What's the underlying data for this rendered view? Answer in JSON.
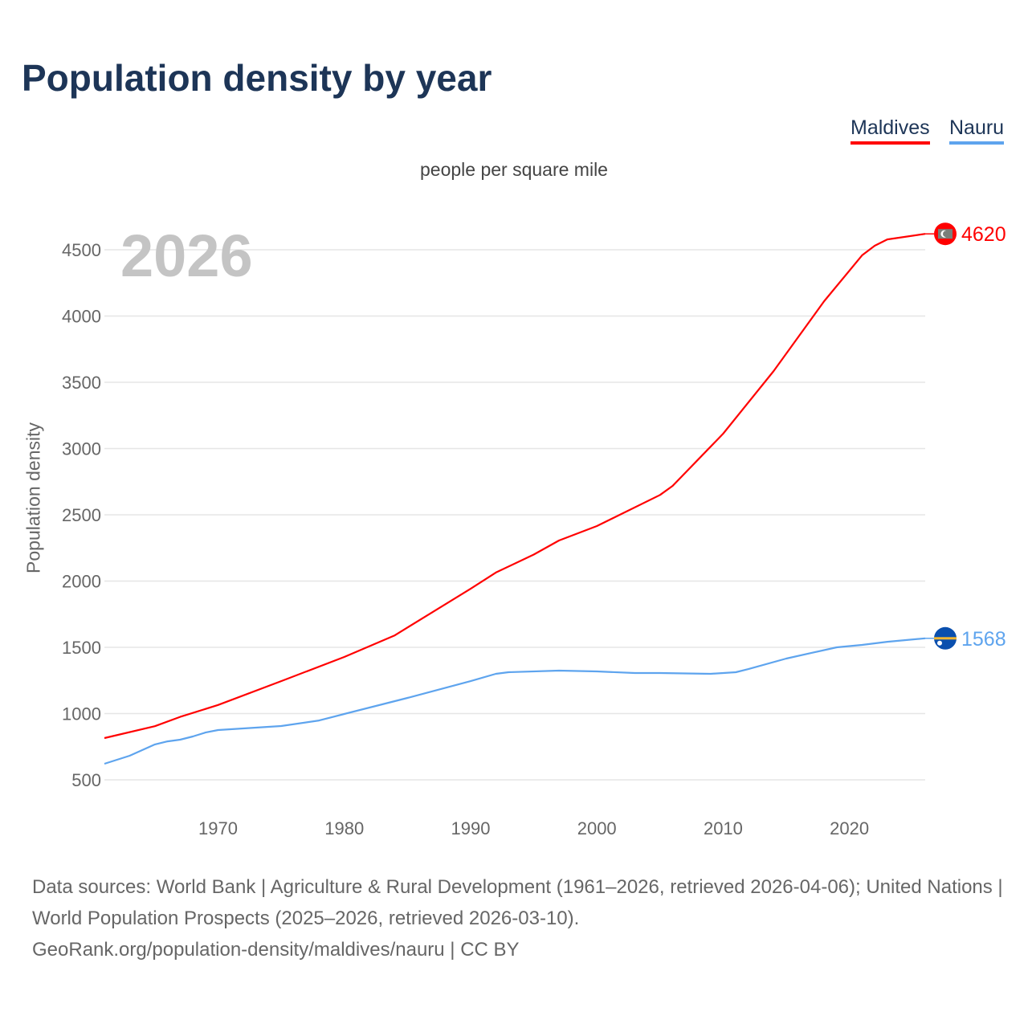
{
  "chart_data": {
    "type": "line",
    "title": "Population density by year",
    "subtitle": "people per square mile",
    "ylabel": "Population density",
    "xlabel": "",
    "watermark_year": "2026",
    "xlim": [
      1961,
      2026
    ],
    "ylim": [
      450,
      4750
    ],
    "x_ticks": [
      1970,
      1980,
      1990,
      2000,
      2010,
      2020
    ],
    "y_ticks": [
      500,
      1000,
      1500,
      2000,
      2500,
      3000,
      3500,
      4000,
      4500
    ],
    "grid": true,
    "legend_position": "top-right",
    "series": [
      {
        "name": "Maldives",
        "color": "#ff0000",
        "end_label": "4620",
        "flag_icon": "maldives-flag-icon",
        "points": [
          [
            1961,
            815
          ],
          [
            1965,
            905
          ],
          [
            1967,
            975
          ],
          [
            1970,
            1065
          ],
          [
            1975,
            1245
          ],
          [
            1980,
            1427
          ],
          [
            1984,
            1590
          ],
          [
            1985,
            1650
          ],
          [
            1990,
            1942
          ],
          [
            1992,
            2064
          ],
          [
            1995,
            2200
          ],
          [
            1997,
            2306
          ],
          [
            2000,
            2415
          ],
          [
            2005,
            2650
          ],
          [
            2006,
            2718
          ],
          [
            2010,
            3112
          ],
          [
            2014,
            3585
          ],
          [
            2018,
            4112
          ],
          [
            2021,
            4458
          ],
          [
            2022,
            4530
          ],
          [
            2023,
            4578
          ],
          [
            2026,
            4620
          ]
        ]
      },
      {
        "name": "Nauru",
        "color": "#5ea4ee",
        "end_label": "1568",
        "flag_icon": "nauru-flag-icon",
        "points": [
          [
            1961,
            621
          ],
          [
            1963,
            682
          ],
          [
            1965,
            767
          ],
          [
            1966,
            790
          ],
          [
            1967,
            803
          ],
          [
            1968,
            827
          ],
          [
            1969,
            857
          ],
          [
            1970,
            876
          ],
          [
            1975,
            906
          ],
          [
            1978,
            948
          ],
          [
            1980,
            997
          ],
          [
            1983,
            1070
          ],
          [
            1985,
            1118
          ],
          [
            1990,
            1245
          ],
          [
            1992,
            1300
          ],
          [
            1993,
            1312
          ],
          [
            1997,
            1324
          ],
          [
            2000,
            1318
          ],
          [
            2003,
            1306
          ],
          [
            2005,
            1306
          ],
          [
            2009,
            1300
          ],
          [
            2011,
            1312
          ],
          [
            2012,
            1336
          ],
          [
            2015,
            1415
          ],
          [
            2017,
            1458
          ],
          [
            2019,
            1500
          ],
          [
            2021,
            1518
          ],
          [
            2023,
            1542
          ],
          [
            2026,
            1568
          ]
        ]
      }
    ]
  },
  "footer": {
    "line1": "Data sources: World Bank | Agriculture & Rural Development (1961–2026, retrieved 2026-04-06); United Nations | World Population Prospects (2025–2026, retrieved 2026-03-10).",
    "line2": "GeoRank.org/population-density/maldives/nauru | CC BY"
  }
}
